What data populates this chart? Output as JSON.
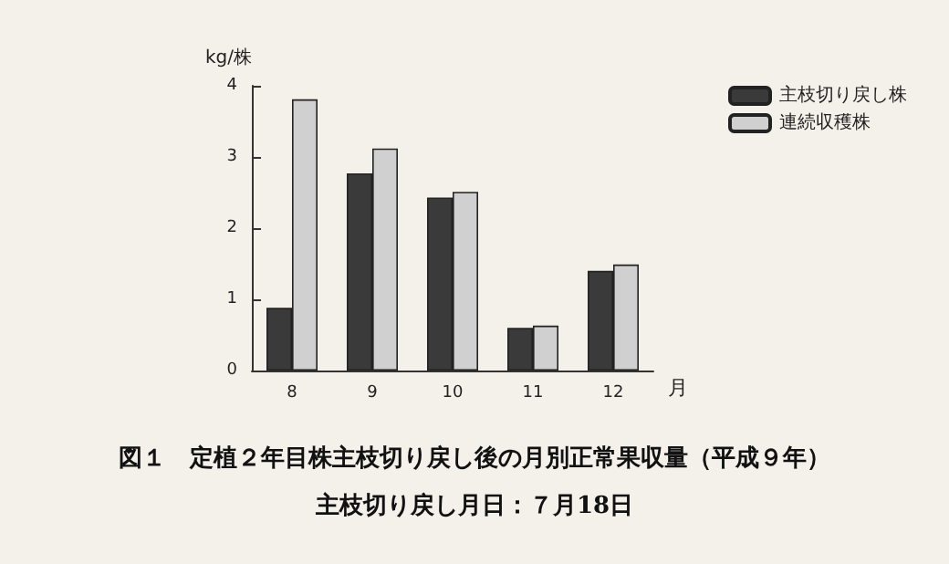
{
  "chart_data": {
    "type": "bar",
    "title": "図１　定植２年目株主枝切り戻し後の月別正常果収量（平成９年）",
    "subtitle": "主枝切り戻し月日：７月18日",
    "ylabel": "kg/株",
    "xlabel": "月",
    "categories": [
      "8",
      "9",
      "10",
      "11",
      "12"
    ],
    "series": [
      {
        "name": "主枝切り戻し株",
        "color": "#3a3a3a",
        "values": [
          0.88,
          2.77,
          2.43,
          0.6,
          1.4
        ]
      },
      {
        "name": "連続収穫株",
        "color": "#d0d0d0",
        "values": [
          3.81,
          3.12,
          2.51,
          0.63,
          1.49
        ]
      }
    ],
    "ylim": [
      0,
      4
    ],
    "yticks": [
      0,
      1,
      2,
      3,
      4
    ],
    "grid": false,
    "legend": "top right"
  }
}
